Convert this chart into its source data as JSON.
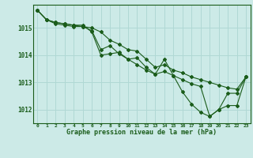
{
  "background_color": "#cceae7",
  "grid_color": "#b0d8d4",
  "line_color": "#1a5c1a",
  "marker_color": "#1a5c1a",
  "title": "Graphe pression niveau de la mer (hPa)",
  "ylabel_values": [
    1012,
    1013,
    1014,
    1015
  ],
  "xlim": [
    -0.5,
    23.5
  ],
  "ylim": [
    1011.5,
    1015.85
  ],
  "series": {
    "line1": [
      1015.65,
      1015.3,
      1015.2,
      1015.15,
      1015.1,
      1015.1,
      1014.85,
      1014.0,
      1014.05,
      1014.1,
      1013.85,
      1013.9,
      1013.55,
      1013.3,
      1013.85,
      1013.25,
      1012.65,
      1012.2,
      1011.9,
      1011.75,
      1012.0,
      1012.15,
      1012.15,
      1013.2
    ],
    "line2": [
      1015.65,
      1015.3,
      1015.15,
      1015.1,
      1015.05,
      1015.05,
      1015.0,
      1014.85,
      1014.55,
      1014.4,
      1014.2,
      1014.15,
      1013.85,
      1013.55,
      1013.65,
      1013.45,
      1013.35,
      1013.2,
      1013.1,
      1013.0,
      1012.9,
      1012.8,
      1012.75,
      1013.2
    ],
    "line3": [
      1015.65,
      1015.3,
      1015.2,
      1015.15,
      1015.1,
      1015.05,
      1014.9,
      1014.2,
      1014.35,
      1014.05,
      1013.85,
      1013.65,
      1013.45,
      1013.3,
      1013.4,
      1013.25,
      1013.1,
      1012.95,
      1012.85,
      1011.75,
      1012.0,
      1012.6,
      1012.6,
      1013.2
    ]
  },
  "xticks": [
    0,
    1,
    2,
    3,
    4,
    5,
    6,
    7,
    8,
    9,
    10,
    11,
    12,
    13,
    14,
    15,
    16,
    17,
    18,
    19,
    20,
    21,
    22,
    23
  ]
}
